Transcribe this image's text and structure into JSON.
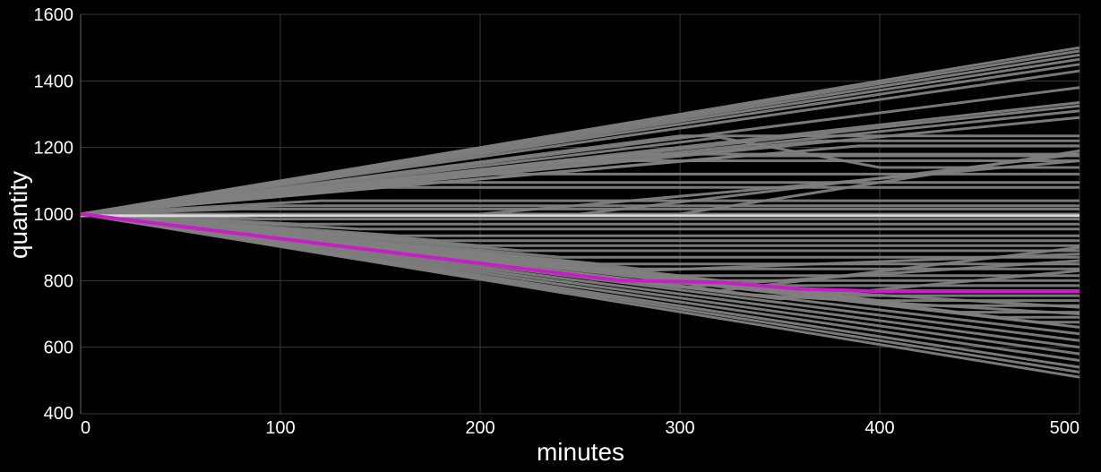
{
  "chart_data": {
    "type": "line",
    "title": "",
    "xlabel": "minutes",
    "ylabel": "quantity",
    "xlim": [
      0,
      500
    ],
    "ylim": [
      400,
      1600
    ],
    "x_ticks": [
      "0",
      "100",
      "200",
      "300",
      "400",
      "500"
    ],
    "y_ticks": [
      "400",
      "600",
      "800",
      "1000",
      "1200",
      "1400",
      "1600"
    ],
    "grid": true,
    "legend": "none",
    "colors": {
      "background": "#000000",
      "series": "#7f7f7f",
      "highlight": "#c81ec8",
      "constant": "#d9d9d9",
      "grid": "#3a3a3a",
      "text": "#ffffff"
    },
    "series": [
      {
        "x": [
          0,
          500
        ],
        "y": [
          1000,
          1500
        ]
      },
      {
        "x": [
          0,
          500
        ],
        "y": [
          1000,
          1490
        ]
      },
      {
        "x": [
          0,
          500
        ],
        "y": [
          1000,
          1478
        ]
      },
      {
        "x": [
          0,
          500
        ],
        "y": [
          1000,
          1465
        ]
      },
      {
        "x": [
          0,
          500
        ],
        "y": [
          1000,
          1450
        ]
      },
      {
        "x": [
          0,
          500
        ],
        "y": [
          1000,
          1430
        ]
      },
      {
        "x": [
          0,
          500
        ],
        "y": [
          1000,
          1380
        ]
      },
      {
        "x": [
          0,
          500
        ],
        "y": [
          1000,
          1335
        ]
      },
      {
        "x": [
          0,
          500
        ],
        "y": [
          1000,
          1325
        ]
      },
      {
        "x": [
          0,
          500
        ],
        "y": [
          1000,
          1310
        ]
      },
      {
        "x": [
          0,
          500
        ],
        "y": [
          1000,
          1290
        ]
      },
      {
        "x": [
          0,
          300,
          500
        ],
        "y": [
          1000,
          1235,
          1235
        ]
      },
      {
        "x": [
          0,
          320,
          400,
          500
        ],
        "y": [
          1000,
          1230,
          1140,
          1140
        ]
      },
      {
        "x": [
          0,
          280,
          500
        ],
        "y": [
          1000,
          1180,
          1180
        ]
      },
      {
        "x": [
          0,
          240,
          500
        ],
        "y": [
          1000,
          1160,
          1160
        ]
      },
      {
        "x": [
          0,
          200,
          500
        ],
        "y": [
          1000,
          1120,
          1120
        ]
      },
      {
        "x": [
          0,
          170,
          500
        ],
        "y": [
          1000,
          1095,
          1095
        ]
      },
      {
        "x": [
          0,
          150,
          500
        ],
        "y": [
          1000,
          1080,
          1080
        ]
      },
      {
        "x": [
          0,
          330,
          500
        ],
        "y": [
          1000,
          1175,
          1175
        ]
      },
      {
        "x": [
          0,
          370,
          500
        ],
        "y": [
          1000,
          1220,
          1220
        ]
      },
      {
        "x": [
          0,
          390,
          500
        ],
        "y": [
          1000,
          1205,
          1205
        ]
      },
      {
        "x": [
          0,
          200,
          500
        ],
        "y": [
          1000,
          1000,
          1160
        ]
      },
      {
        "x": [
          0,
          250,
          500
        ],
        "y": [
          1000,
          1000,
          1180
        ]
      },
      {
        "x": [
          0,
          300,
          500
        ],
        "y": [
          1000,
          1000,
          1190
        ]
      },
      {
        "x": [
          0,
          120,
          500
        ],
        "y": [
          1000,
          1040,
          1040
        ]
      },
      {
        "x": [
          0,
          100,
          500
        ],
        "y": [
          1000,
          1025,
          1025
        ]
      },
      {
        "x": [
          0,
          80,
          500
        ],
        "y": [
          1000,
          1015,
          1015
        ]
      },
      {
        "x": [
          0,
          500
        ],
        "y": [
          1000,
          1000
        ]
      },
      {
        "x": [
          0,
          90,
          500
        ],
        "y": [
          1000,
          985,
          985
        ]
      },
      {
        "x": [
          0,
          110,
          500
        ],
        "y": [
          1000,
          970,
          970
        ]
      },
      {
        "x": [
          0,
          140,
          500
        ],
        "y": [
          1000,
          955,
          955
        ]
      },
      {
        "x": [
          0,
          160,
          500
        ],
        "y": [
          1000,
          935,
          935
        ]
      },
      {
        "x": [
          0,
          180,
          500
        ],
        "y": [
          1000,
          920,
          920
        ]
      },
      {
        "x": [
          0,
          200,
          500
        ],
        "y": [
          1000,
          905,
          905
        ]
      },
      {
        "x": [
          0,
          220,
          500
        ],
        "y": [
          1000,
          890,
          890
        ]
      },
      {
        "x": [
          0,
          240,
          500
        ],
        "y": [
          1000,
          870,
          870
        ]
      },
      {
        "x": [
          0,
          260,
          500
        ],
        "y": [
          1000,
          850,
          850
        ]
      },
      {
        "x": [
          0,
          280,
          500
        ],
        "y": [
          1000,
          835,
          835
        ]
      },
      {
        "x": [
          0,
          300,
          500
        ],
        "y": [
          1000,
          815,
          815
        ]
      },
      {
        "x": [
          0,
          320,
          500
        ],
        "y": [
          1000,
          800,
          800
        ]
      },
      {
        "x": [
          0,
          340,
          500
        ],
        "y": [
          1000,
          785,
          785
        ]
      },
      {
        "x": [
          0,
          360,
          500
        ],
        "y": [
          1000,
          770,
          770
        ]
      },
      {
        "x": [
          0,
          380,
          500
        ],
        "y": [
          1000,
          755,
          755
        ]
      },
      {
        "x": [
          0,
          400,
          500
        ],
        "y": [
          1000,
          740,
          740
        ]
      },
      {
        "x": [
          0,
          420,
          500
        ],
        "y": [
          1000,
          725,
          725
        ]
      },
      {
        "x": [
          0,
          440,
          500
        ],
        "y": [
          1000,
          705,
          705
        ]
      },
      {
        "x": [
          0,
          460,
          500
        ],
        "y": [
          1000,
          690,
          690
        ]
      },
      {
        "x": [
          0,
          480,
          500
        ],
        "y": [
          1000,
          675,
          675
        ]
      },
      {
        "x": [
          0,
          500
        ],
        "y": [
          1000,
          660
        ]
      },
      {
        "x": [
          0,
          500
        ],
        "y": [
          1000,
          640
        ]
      },
      {
        "x": [
          0,
          500
        ],
        "y": [
          1000,
          620
        ]
      },
      {
        "x": [
          0,
          500
        ],
        "y": [
          1000,
          600
        ]
      },
      {
        "x": [
          0,
          500
        ],
        "y": [
          1000,
          580
        ]
      },
      {
        "x": [
          0,
          500
        ],
        "y": [
          1000,
          560
        ]
      },
      {
        "x": [
          0,
          500
        ],
        "y": [
          1000,
          540
        ]
      },
      {
        "x": [
          0,
          500
        ],
        "y": [
          1000,
          525
        ]
      },
      {
        "x": [
          0,
          500
        ],
        "y": [
          1000,
          510
        ]
      },
      {
        "x": [
          0,
          300,
          500
        ],
        "y": [
          1000,
          780,
          860
        ]
      },
      {
        "x": [
          0,
          320,
          500
        ],
        "y": [
          1000,
          770,
          900
        ]
      },
      {
        "x": [
          0,
          350,
          500
        ],
        "y": [
          1000,
          745,
          830
        ]
      },
      {
        "x": [
          0,
          280,
          500
        ],
        "y": [
          1000,
          800,
          720
        ]
      },
      {
        "x": [
          0,
          330,
          500
        ],
        "y": [
          1000,
          760,
          700
        ]
      },
      {
        "x": [
          0,
          260,
          500
        ],
        "y": [
          1000,
          825,
          880
        ]
      }
    ],
    "highlight": {
      "x": [
        0,
        270,
        320,
        360,
        400,
        500
      ],
      "y": [
        1000,
        800,
        795,
        775,
        768,
        768
      ]
    },
    "constant": {
      "x": [
        0,
        500
      ],
      "y": [
        995,
        995
      ]
    }
  }
}
